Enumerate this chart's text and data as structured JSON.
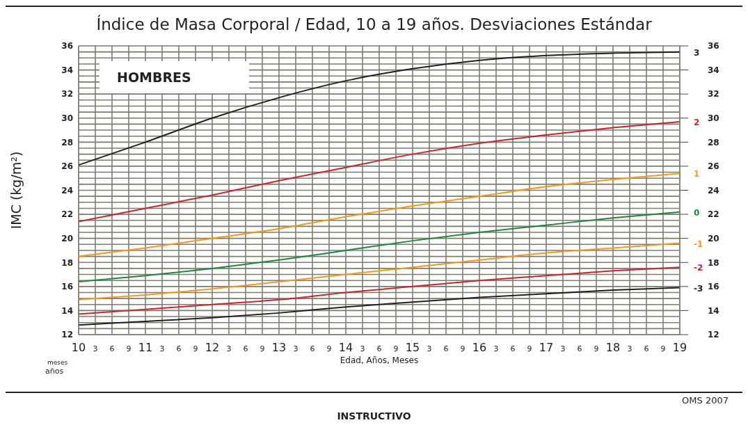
{
  "chart_data": {
    "type": "line",
    "title": "Índice de Masa Corporal / Edad, 10 a 19 años. Desviaciones Estándar",
    "xlabel": "Edad, Años, Meses",
    "ylabel": "IMC (kg/m²)",
    "annotations": [
      "HOMBRES",
      "meses",
      "años",
      "OMS 2007",
      "INSTRUCTIVO",
      "3",
      "6",
      "9",
      "3",
      "6",
      "9",
      "3",
      "6",
      "9",
      "3",
      "6",
      "9",
      "3",
      "6",
      "9",
      "3",
      "6",
      "9",
      "3",
      "6",
      "9",
      "3",
      "6",
      "9",
      "3",
      "6",
      "9"
    ],
    "x": [
      10,
      11,
      12,
      13,
      14,
      15,
      16,
      17,
      18,
      19
    ],
    "series": [
      {
        "name": "3",
        "color": "#231f20",
        "values": [
          26.1,
          28.0,
          30.0,
          31.7,
          33.1,
          34.1,
          34.8,
          35.2,
          35.4,
          35.5
        ]
      },
      {
        "name": "2",
        "color": "#c8262b",
        "values": [
          21.4,
          22.5,
          23.6,
          24.8,
          25.9,
          27.0,
          27.9,
          28.6,
          29.2,
          29.7
        ]
      },
      {
        "name": "1",
        "color": "#f7941d",
        "values": [
          18.5,
          19.2,
          20.0,
          20.8,
          21.8,
          22.7,
          23.5,
          24.3,
          24.9,
          25.4
        ]
      },
      {
        "name": "0",
        "color": "#178a3e",
        "values": [
          16.4,
          16.9,
          17.5,
          18.2,
          19.0,
          19.8,
          20.5,
          21.1,
          21.7,
          22.2
        ]
      },
      {
        "name": "-1",
        "color": "#f7941d",
        "values": [
          14.9,
          15.3,
          15.8,
          16.4,
          17.0,
          17.6,
          18.2,
          18.8,
          19.2,
          19.6
        ]
      },
      {
        "name": "-2",
        "color": "#c8262b",
        "values": [
          13.7,
          14.1,
          14.5,
          14.9,
          15.5,
          16.0,
          16.5,
          16.9,
          17.3,
          17.6
        ]
      },
      {
        "name": "-3",
        "color": "#231f20",
        "values": [
          12.8,
          13.1,
          13.4,
          13.8,
          14.3,
          14.7,
          15.1,
          15.4,
          15.7,
          15.9
        ]
      }
    ],
    "xlim": [
      10,
      19
    ],
    "xticks": [
      10,
      {
        "value": 10.25,
        "label": null
      },
      {
        "value": 10.5,
        "label": null
      },
      {
        "value": 10.75,
        "label": null
      },
      11,
      {
        "value": 11.25,
        "label": null
      },
      {
        "value": 11.5,
        "label": null
      },
      {
        "value": 11.75,
        "label": null
      },
      12,
      {
        "value": 12.25,
        "label": null
      },
      {
        "value": 12.5,
        "label": null
      },
      {
        "value": 12.75,
        "label": null
      },
      13,
      {
        "value": 13.25,
        "label": null
      },
      {
        "value": 13.5,
        "label": null
      },
      {
        "value": 13.75,
        "label": null
      },
      14,
      {
        "value": 14.25,
        "label": null
      },
      {
        "value": 14.5,
        "label": null
      },
      {
        "value": 14.75,
        "label": null
      },
      15,
      {
        "value": 15.25,
        "label": null
      },
      {
        "value": 15.5,
        "label": null
      },
      {
        "value": 15.75,
        "label": null
      },
      16,
      {
        "value": 16.25,
        "label": null
      },
      {
        "value": 16.5,
        "label": null
      },
      {
        "value": 16.75,
        "label": null
      },
      17,
      {
        "value": 17.25,
        "label": null
      },
      {
        "value": 17.5,
        "label": null
      },
      {
        "value": 17.75,
        "label": null
      },
      18,
      {
        "value": 18.25,
        "label": null
      },
      {
        "value": 18.5,
        "label": null
      },
      {
        "value": 18.75,
        "label": null
      },
      19
    ],
    "ylim": [
      12,
      36
    ],
    "yticks": [
      12,
      {
        "value": 12.5,
        "label": null
      },
      {
        "value": 13,
        "label": null
      },
      {
        "value": 13.5,
        "label": null
      },
      14,
      {
        "value": 14.5,
        "label": null
      },
      {
        "value": 15,
        "label": null
      },
      {
        "value": 15.5,
        "label": null
      },
      16,
      {
        "value": 16.5,
        "label": null
      },
      {
        "value": 17,
        "label": null
      },
      {
        "value": 17.5,
        "label": null
      },
      18,
      {
        "value": 18.5,
        "label": null
      },
      {
        "value": 19,
        "label": null
      },
      {
        "value": 19.5,
        "label": null
      },
      20,
      {
        "value": 20.5,
        "label": null
      },
      {
        "value": 21,
        "label": null
      },
      {
        "value": 21.5,
        "label": null
      },
      22,
      {
        "value": 22.5,
        "label": null
      },
      {
        "value": 23,
        "label": null
      },
      {
        "value": 23.5,
        "label": null
      },
      24,
      {
        "value": 24.5,
        "label": null
      },
      {
        "value": 25,
        "label": null
      },
      {
        "value": 25.5,
        "label": null
      },
      26,
      {
        "value": 26.5,
        "label": null
      },
      {
        "value": 27,
        "label": null
      },
      {
        "value": 27.5,
        "label": null
      },
      28,
      {
        "value": 28.5,
        "label": null
      },
      {
        "value": 29,
        "label": null
      },
      {
        "value": 29.5,
        "label": null
      },
      30,
      {
        "value": 30.5,
        "label": null
      },
      {
        "value": 31,
        "label": null
      },
      {
        "value": 31.5,
        "label": null
      },
      32,
      {
        "value": 32.5,
        "label": null
      },
      {
        "value": 33,
        "label": null
      },
      {
        "value": 33.5,
        "label": null
      },
      34,
      {
        "value": 34.5,
        "label": null
      },
      {
        "value": 35,
        "label": null
      },
      {
        "value": 35.5,
        "label": null
      },
      36
    ],
    "y2lim": [
      12,
      36
    ],
    "y2ticks": [
      12,
      14,
      16,
      18,
      20,
      22,
      24,
      26,
      28,
      30,
      32,
      34,
      36
    ],
    "grid": true
  }
}
